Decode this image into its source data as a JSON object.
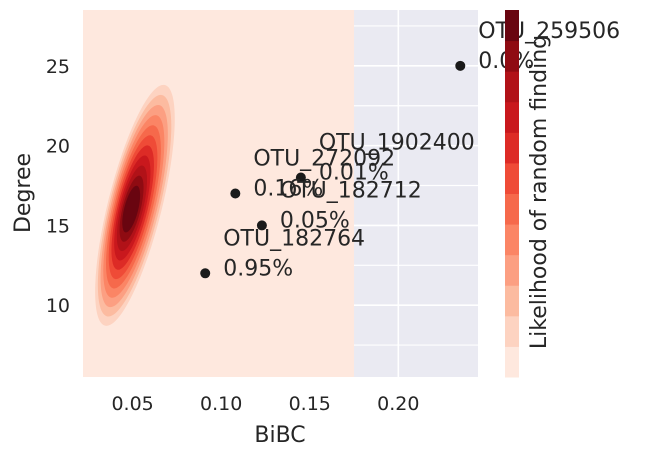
{
  "chart_data": {
    "type": "scatter",
    "xlabel": "BiBC",
    "ylabel": "Degree",
    "xlim": [
      0.022,
      0.245
    ],
    "ylim": [
      5.5,
      28.5
    ],
    "x_ticks": [
      {
        "value": 0.05,
        "label": "0.05"
      },
      {
        "value": 0.1,
        "label": "0.10"
      },
      {
        "value": 0.15,
        "label": "0.15"
      },
      {
        "value": 0.2,
        "label": "0.20"
      }
    ],
    "y_ticks": [
      {
        "value": 10,
        "label": "10"
      },
      {
        "value": 15,
        "label": "15"
      },
      {
        "value": 20,
        "label": "20"
      },
      {
        "value": 25,
        "label": "25"
      }
    ],
    "grid": true,
    "background_color": "#eaeaf2",
    "density_fill_extent_x": [
      0.022,
      0.175
    ],
    "density_peak": {
      "x": 0.049,
      "y": 16.0
    },
    "points": [
      {
        "name": "OTU_259506",
        "pct": "0.0%",
        "x": 0.235,
        "y": 25
      },
      {
        "name": "OTU_1902400",
        "pct": "0.01%",
        "x": 0.145,
        "y": 18
      },
      {
        "name": "OTU_272092",
        "pct": "0.16%",
        "x": 0.108,
        "y": 17
      },
      {
        "name": "OTU_182712",
        "pct": "0.05%",
        "x": 0.123,
        "y": 15
      },
      {
        "name": "OTU_182764",
        "pct": "0.95%",
        "x": 0.091,
        "y": 12
      }
    ],
    "colorbar": {
      "label": "Likelihood of random finding",
      "colors": [
        "#fee8de",
        "#fdd3c1",
        "#fcbba0",
        "#fc9f82",
        "#fb8565",
        "#f6694b",
        "#ef4b37",
        "#dd2b26",
        "#c9181d",
        "#b11218",
        "#8f0b12",
        "#690510"
      ]
    }
  }
}
